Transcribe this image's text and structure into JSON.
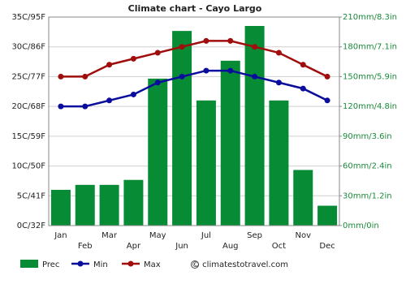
{
  "chart_data": {
    "type": "bar",
    "title": "Climate chart - Cayo Largo",
    "categories": [
      "Jan",
      "Feb",
      "Mar",
      "Apr",
      "May",
      "Jun",
      "Jul",
      "Aug",
      "Sep",
      "Oct",
      "Nov",
      "Dec"
    ],
    "series": [
      {
        "name": "Prec",
        "type": "bar",
        "axis": "y2",
        "color": "#078c35",
        "values": [
          36,
          41,
          41,
          46,
          148,
          196,
          126,
          166,
          201,
          126,
          56,
          20
        ]
      },
      {
        "name": "Min",
        "type": "line",
        "color": "#0a0c9c",
        "values": [
          20,
          20,
          21,
          22,
          24,
          25,
          26,
          26,
          25,
          24,
          23,
          21
        ]
      },
      {
        "name": "Max",
        "type": "line",
        "color": "#a00d0d",
        "values": [
          25,
          25,
          27,
          28,
          29,
          30,
          31,
          31,
          30,
          29,
          27,
          25
        ]
      }
    ],
    "ylim": [
      0,
      35
    ],
    "yticks": [
      {
        "value": 0,
        "label": "0C/32F"
      },
      {
        "value": 5,
        "label": "5C/41F"
      },
      {
        "value": 10,
        "label": "10C/50F"
      },
      {
        "value": 15,
        "label": "15C/59F"
      },
      {
        "value": 20,
        "label": "20C/68F"
      },
      {
        "value": 25,
        "label": "25C/77F"
      },
      {
        "value": 30,
        "label": "30C/86F"
      },
      {
        "value": 35,
        "label": "35C/95F"
      }
    ],
    "y2lim": [
      0,
      210
    ],
    "y2ticks": [
      {
        "value": 0,
        "label": "0mm/0in"
      },
      {
        "value": 30,
        "label": "30mm/1.2in"
      },
      {
        "value": 60,
        "label": "60mm/2.4in"
      },
      {
        "value": 90,
        "label": "90mm/3.6in"
      },
      {
        "value": 120,
        "label": "120mm/4.8in"
      },
      {
        "value": 150,
        "label": "150mm/5.9in"
      },
      {
        "value": 180,
        "label": "180mm/7.1in"
      },
      {
        "value": 210,
        "label": "210mm/8.3in"
      }
    ],
    "grid": true,
    "legend": "bottom",
    "source": "© climatestotravel.com"
  }
}
